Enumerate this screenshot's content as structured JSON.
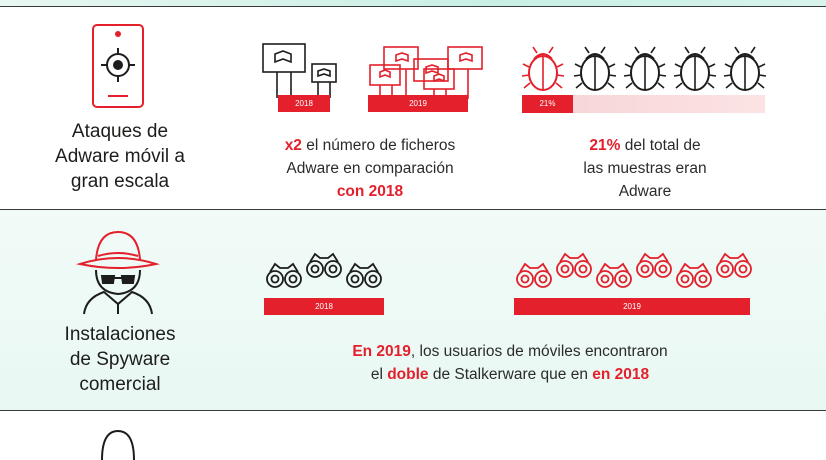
{
  "sections": {
    "adware": {
      "title_lines": [
        "Ataques de",
        "Adware móvil a",
        "gran escala"
      ],
      "bar_2018": "2018",
      "bar_2019": "2019",
      "pct_label": "21%",
      "pct_value": 0.21,
      "caption1": {
        "red1": "x2",
        "text1": " el número de ficheros",
        "text2": "Adware en comparación",
        "red2": "con 2018"
      },
      "caption2": {
        "red1": "21%",
        "text1": " del total de",
        "text2": "las muestras eran",
        "text3": "Adware"
      },
      "phone_icon": "phone-target-icon",
      "billboard_icon": "billboard-icon",
      "bug_icon": "bug-icon"
    },
    "spyware": {
      "title_lines": [
        "Instalaciones",
        "de Spyware",
        "comercial"
      ],
      "bar_2018": "2018",
      "bar_2019": "2019",
      "caption": {
        "red1": "En 2019",
        "text1": ", los usuarios de móviles encontraron",
        "text2a": "el ",
        "red2": "doble",
        "text2b": " de Stalkerware que en ",
        "red3": "en 2018"
      },
      "spy_icon": "spy-hat-icon",
      "binoculars_icon": "binoculars-icon"
    }
  },
  "colors": {
    "accent": "#e3202b",
    "dark": "#1d1d1b",
    "mint": "#e9f8f3"
  }
}
